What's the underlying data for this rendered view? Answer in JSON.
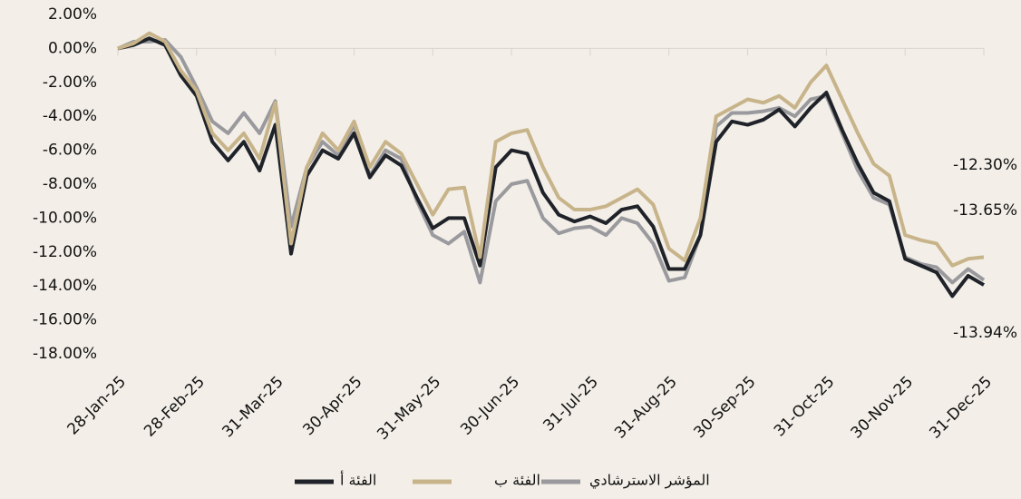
{
  "chart_data": {
    "type": "line",
    "categories": [
      "28-Jan-25",
      null,
      null,
      null,
      null,
      "28-Feb-25",
      null,
      null,
      null,
      null,
      "31-Mar-25",
      null,
      null,
      null,
      null,
      "30-Apr-25",
      null,
      null,
      null,
      null,
      "31-May-25",
      null,
      null,
      null,
      null,
      "30-Jun-25",
      null,
      null,
      null,
      null,
      "31-Jul-25",
      null,
      null,
      null,
      null,
      "31-Aug-25",
      null,
      null,
      null,
      null,
      "30-Sep-25",
      null,
      null,
      null,
      null,
      "31-Oct-25",
      null,
      null,
      null,
      null,
      "30-Nov-25",
      null,
      null,
      null,
      null,
      "31-Dec-25"
    ],
    "series": [
      {
        "name": "الفئة أ",
        "color": "#1f2329",
        "end_label": "-13.94%",
        "values": [
          0,
          0.2,
          0.6,
          0.2,
          -1.6,
          -2.8,
          -5.5,
          -6.6,
          -5.5,
          -7.2,
          -4.5,
          -12.1,
          -7.5,
          -6.0,
          -6.5,
          -5.0,
          -7.6,
          -6.3,
          -6.9,
          -8.8,
          -10.6,
          -10.0,
          -10.0,
          -12.8,
          -7.0,
          -6.0,
          -6.2,
          -8.5,
          -9.8,
          -10.2,
          -9.9,
          -10.3,
          -9.5,
          -9.3,
          -10.5,
          -13.0,
          -13.0,
          -11.0,
          -5.5,
          -4.3,
          -4.5,
          -4.2,
          -3.6,
          -4.6,
          -3.5,
          -2.6,
          -4.8,
          -6.8,
          -8.5,
          -9.0,
          -12.4,
          -12.8,
          -13.2,
          -14.6,
          -13.4,
          -13.94
        ]
      },
      {
        "name": "الفئة ب",
        "color": "#c8b48a",
        "end_label": "-12.30%",
        "values": [
          0,
          0.3,
          0.9,
          0.4,
          -1.3,
          -2.5,
          -5.0,
          -6.0,
          -5.0,
          -6.5,
          -3.2,
          -11.5,
          -7.0,
          -5.0,
          -6.0,
          -4.3,
          -7.0,
          -5.5,
          -6.2,
          -8.0,
          -9.8,
          -8.3,
          -8.2,
          -12.3,
          -5.5,
          -5.0,
          -4.8,
          -7.0,
          -8.8,
          -9.5,
          -9.5,
          -9.3,
          -8.8,
          -8.3,
          -9.2,
          -11.8,
          -12.5,
          -10.0,
          -4.0,
          -3.5,
          -3.0,
          -3.2,
          -2.8,
          -3.5,
          -2.0,
          -1.0,
          -3.0,
          -5.0,
          -6.8,
          -7.5,
          -11.0,
          -11.3,
          -11.5,
          -12.8,
          -12.4,
          -12.3
        ]
      },
      {
        "name": "المؤشر الاسترشادي",
        "color": "#9a9a9e",
        "end_label": "-13.65%",
        "values": [
          0,
          0.4,
          0.4,
          0.5,
          -0.5,
          -2.3,
          -4.3,
          -5.0,
          -3.8,
          -5.0,
          -3.1,
          -10.5,
          -7.0,
          -5.5,
          -6.3,
          -4.5,
          -7.5,
          -6.0,
          -6.5,
          -9.0,
          -11.0,
          -11.5,
          -10.8,
          -13.8,
          -9.0,
          -8.0,
          -7.8,
          -10.0,
          -10.9,
          -10.6,
          -10.5,
          -11.0,
          -10.0,
          -10.3,
          -11.5,
          -13.7,
          -13.5,
          -11.0,
          -4.6,
          -3.8,
          -3.8,
          -3.7,
          -3.5,
          -4.0,
          -3.0,
          -2.8,
          -5.0,
          -7.2,
          -8.8,
          -9.2,
          -12.3,
          -12.7,
          -12.9,
          -13.8,
          -13.0,
          -13.65
        ]
      }
    ],
    "ylim": [
      -18,
      2
    ],
    "yticks": [
      {
        "value": 2,
        "label": "2.00%"
      },
      {
        "value": 0,
        "label": "0.00%"
      },
      {
        "value": -2,
        "label": "-2.00%"
      },
      {
        "value": -4,
        "label": "-4.00%"
      },
      {
        "value": -6,
        "label": "-6.00%"
      },
      {
        "value": -8,
        "label": "-8.00%"
      },
      {
        "value": -10,
        "label": "-10.00%"
      },
      {
        "value": -12,
        "label": "-12.00%"
      },
      {
        "value": -14,
        "label": "-14.00%"
      },
      {
        "value": -16,
        "label": "-16.00%"
      },
      {
        "value": -18,
        "label": "-18.00%"
      }
    ],
    "grid": false
  }
}
